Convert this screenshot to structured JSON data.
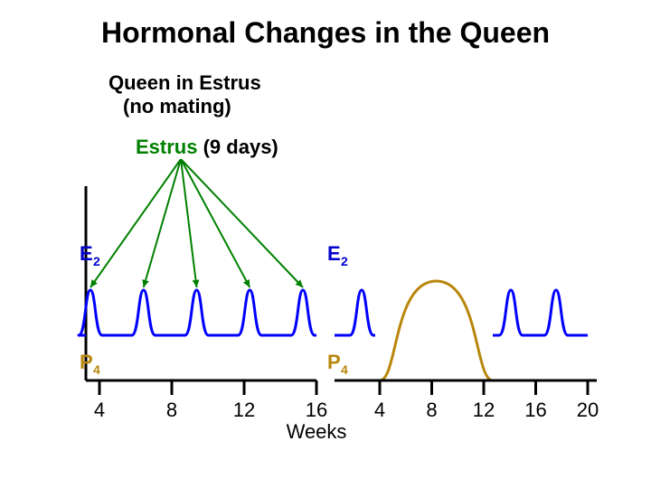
{
  "title": {
    "text": "Hormonal Changes in the Queen",
    "fontsize": 32,
    "color": "#000000",
    "weight": "bold"
  },
  "subtitle": {
    "line1": "Queen in Estrus",
    "line2": "(no mating)",
    "fontsize": 22,
    "color": "#000000",
    "weight": "bold"
  },
  "estrus_label": {
    "estrus": "Estrus",
    "duration": "(9 days)",
    "fontsize": 22,
    "estrus_color": "#008000",
    "duration_color": "#000000",
    "weight": "bold"
  },
  "hormones": {
    "E2": {
      "text": "E",
      "sub": "2",
      "color": "#0000cc",
      "fontsize": 22
    },
    "P4": {
      "text": "P",
      "sub": "4",
      "color": "#b8860b",
      "fontsize": 22
    }
  },
  "axis": {
    "label": "Weeks",
    "label_fontsize": 22,
    "tick_fontsize": 22,
    "left_ticks": [
      "4",
      "8",
      "12",
      "16"
    ],
    "right_ticks": [
      "4",
      "8",
      "12",
      "16",
      "20"
    ],
    "color": "#000000"
  },
  "chart": {
    "line_width": 3,
    "e2_color": "#0000ff",
    "p4_color": "#b8860b",
    "arrow_color": "#008000",
    "axis_color": "#000000",
    "background": "#ffffff",
    "left_peaks": 5,
    "right_e2_peaks": 3,
    "right_p4_hump": true
  }
}
